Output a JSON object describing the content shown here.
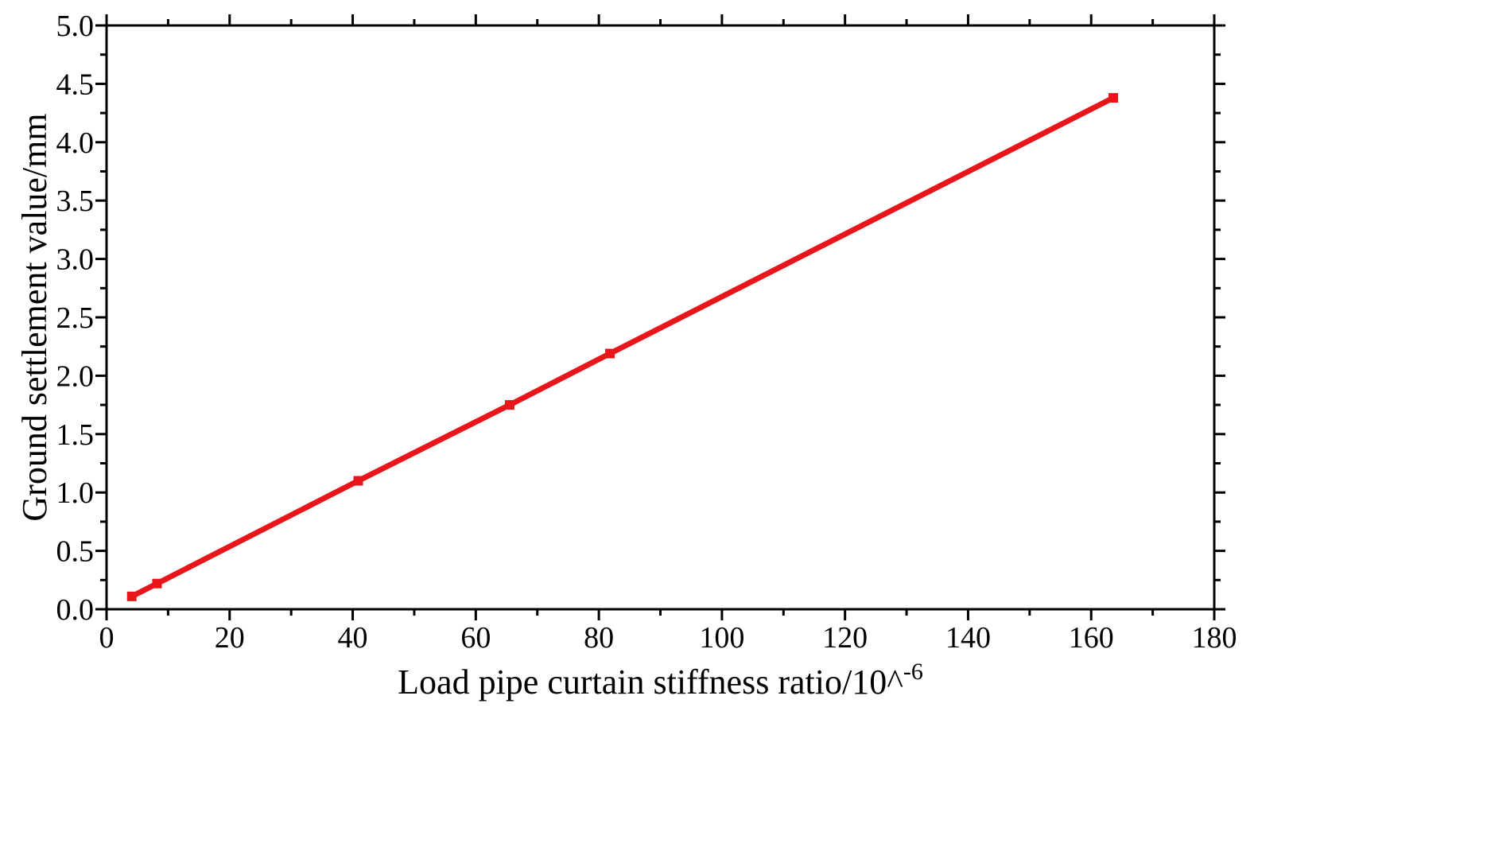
{
  "chart_data": {
    "type": "line",
    "title": "",
    "xlabel": "Load pipe curtain stiffness ratio/10^",
    "xlabel_superscript": "-6",
    "ylabel": "Ground settlement value/mm",
    "xlim": [
      0,
      180
    ],
    "ylim": [
      0,
      5.0
    ],
    "x_ticks": [
      "0",
      "20",
      "40",
      "60",
      "80",
      "100",
      "120",
      "140",
      "160",
      "180"
    ],
    "y_ticks": [
      "0.0",
      "0.5",
      "1.0",
      "1.5",
      "2.0",
      "2.5",
      "3.0",
      "3.5",
      "4.0",
      "4.5",
      "5.0"
    ],
    "grid": false,
    "legend": "none",
    "series": [
      {
        "color": "#e8151b",
        "marker": "square",
        "x": [
          4.1,
          8.2,
          40.9,
          65.5,
          81.8,
          163.6
        ],
        "y": [
          0.11,
          0.22,
          1.1,
          1.75,
          2.19,
          4.38
        ]
      }
    ]
  }
}
